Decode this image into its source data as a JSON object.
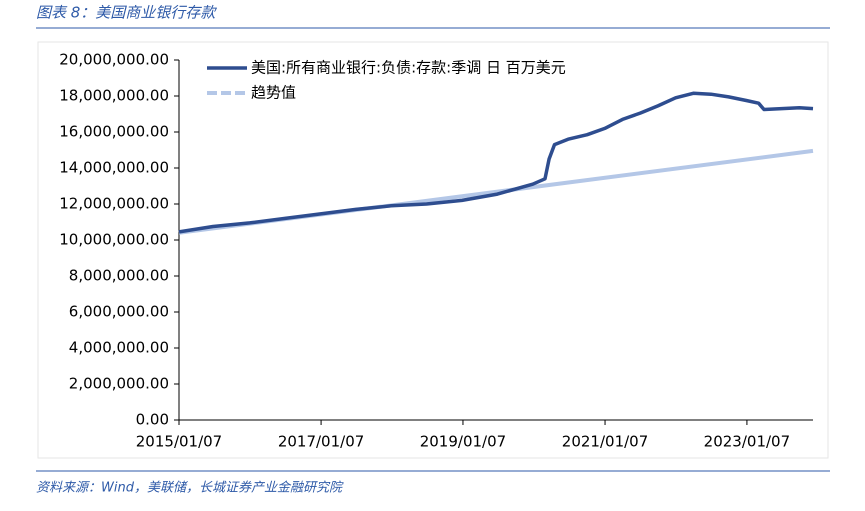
{
  "chart_data": {
    "type": "line",
    "title": "图表 8：美国商业银行存款",
    "source": "资料来源：Wind，美联储，长城证券产业金融研究院",
    "x": [
      "2015/01/07",
      "2015/07/01",
      "2016/01/06",
      "2016/07/06",
      "2017/01/04",
      "2017/07/05",
      "2018/01/03",
      "2018/07/04",
      "2019/01/02",
      "2019/07/03",
      "2020/01/01",
      "2020/03/04",
      "2020/03/25",
      "2020/04/22",
      "2020/07/01",
      "2020/10/07",
      "2021/01/06",
      "2021/04/07",
      "2021/07/07",
      "2021/10/06",
      "2022/01/05",
      "2022/04/06",
      "2022/07/06",
      "2022/10/05",
      "2023/01/04",
      "2023/03/08",
      "2023/04/05",
      "2023/07/05",
      "2023/10/04",
      "2023/12/13"
    ],
    "series": [
      {
        "name": "美国:所有商业银行:负债:存款:季调 日 百万美元",
        "color": "#2e4d8f",
        "width": 3.5,
        "x": [
          "2015/01/07",
          "2015/07/01",
          "2016/01/06",
          "2016/07/06",
          "2017/01/04",
          "2017/07/05",
          "2018/01/03",
          "2018/07/04",
          "2019/01/02",
          "2019/07/03",
          "2020/01/01",
          "2020/03/04",
          "2020/03/25",
          "2020/04/22",
          "2020/07/01",
          "2020/10/07",
          "2021/01/06",
          "2021/04/07",
          "2021/07/07",
          "2021/10/06",
          "2022/01/05",
          "2022/04/06",
          "2022/07/06",
          "2022/10/05",
          "2023/01/04",
          "2023/03/08",
          "2023/04/05",
          "2023/07/05",
          "2023/10/04",
          "2023/12/13"
        ],
        "values": [
          10450000,
          10750000,
          10950000,
          11200000,
          11450000,
          11700000,
          11900000,
          12000000,
          12200000,
          12550000,
          13100000,
          13400000,
          14500000,
          15300000,
          15600000,
          15850000,
          16200000,
          16700000,
          17050000,
          17450000,
          17900000,
          18150000,
          18100000,
          17950000,
          17750000,
          17600000,
          17250000,
          17300000,
          17350000,
          17300000
        ]
      },
      {
        "name": "趋势值",
        "color": "#b4c7e7",
        "width": 4,
        "x": [
          "2015/01/07",
          "2023/12/13"
        ],
        "values": [
          10400000,
          14950000
        ]
      }
    ],
    "xlim": [
      "2015/01/07",
      "2023/12/13"
    ],
    "xticks": [
      "2015/01/07",
      "2017/01/07",
      "2019/01/07",
      "2021/01/07",
      "2023/01/07"
    ],
    "ylim": [
      0,
      20000000
    ],
    "yticks": [
      {
        "value": 0,
        "label": "0.00"
      },
      {
        "value": 2000000,
        "label": "2,000,000.00"
      },
      {
        "value": 4000000,
        "label": "4,000,000.00"
      },
      {
        "value": 6000000,
        "label": "6,000,000.00"
      },
      {
        "value": 8000000,
        "label": "8,000,000.00"
      },
      {
        "value": 10000000,
        "label": "10,000,000.00"
      },
      {
        "value": 12000000,
        "label": "12,000,000.00"
      },
      {
        "value": 14000000,
        "label": "14,000,000.00"
      },
      {
        "value": 16000000,
        "label": "16,000,000.00"
      },
      {
        "value": 18000000,
        "label": "18,000,000.00"
      },
      {
        "value": 20000000,
        "label": "20,000,000.00"
      }
    ],
    "legend": "upper-left"
  }
}
